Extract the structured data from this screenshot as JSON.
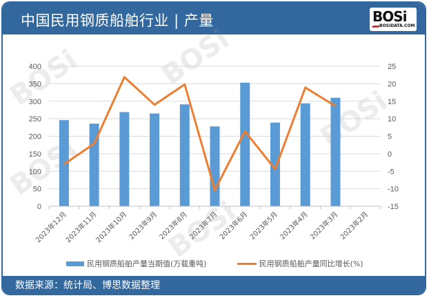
{
  "header": {
    "title": "中国民用钢质船舶行业 | 产量",
    "logo_text": "BOSi",
    "logo_sub": "BOSIDATA.COM"
  },
  "footer": {
    "source": "数据来源：统计局、博思数据整理"
  },
  "colors": {
    "header_bg": "#33689f",
    "bar": "#5b9bd5",
    "line": "#ed7d31",
    "grid": "#d9d9d9"
  },
  "chart_data": {
    "type": "bar+line",
    "title": "中国民用钢质船舶行业 | 产量",
    "categories": [
      "2023年12月",
      "2023年11月",
      "2023年10月",
      "2023年9月",
      "2023年8月",
      "2023年7月",
      "2023年6月",
      "2023年5月",
      "2023年4月",
      "2023年3月",
      "2023年2月"
    ],
    "series": [
      {
        "name": "民用钢质船舶产量当期值(万载重吨)",
        "type": "bar",
        "axis": "left",
        "values": [
          246,
          236,
          269,
          265,
          291,
          228,
          353,
          239,
          294,
          310,
          null
        ]
      },
      {
        "name": "民用钢质船舶产量同比增长(%)",
        "type": "line",
        "axis": "right",
        "values": [
          -3.0,
          2.9,
          21.9,
          14.0,
          19.8,
          -10.4,
          6.4,
          -4.4,
          18.9,
          13.6,
          null
        ]
      }
    ],
    "y_left": {
      "ticks": [
        0,
        50,
        100,
        150,
        200,
        250,
        300,
        350,
        400
      ],
      "ylim": [
        0,
        400
      ]
    },
    "y_right": {
      "ticks": [
        -15,
        -10,
        -5,
        0,
        5,
        10,
        15,
        20,
        25
      ],
      "ylim": [
        -15,
        25
      ]
    },
    "grid": true,
    "legend_position": "bottom"
  },
  "legend": {
    "bar_label": "民用钢质船舶产量当期值(万载重吨)",
    "line_label": "民用钢质船舶产量同比增长(%)"
  },
  "watermark": "BOSi 博思数据 BosiData Research"
}
